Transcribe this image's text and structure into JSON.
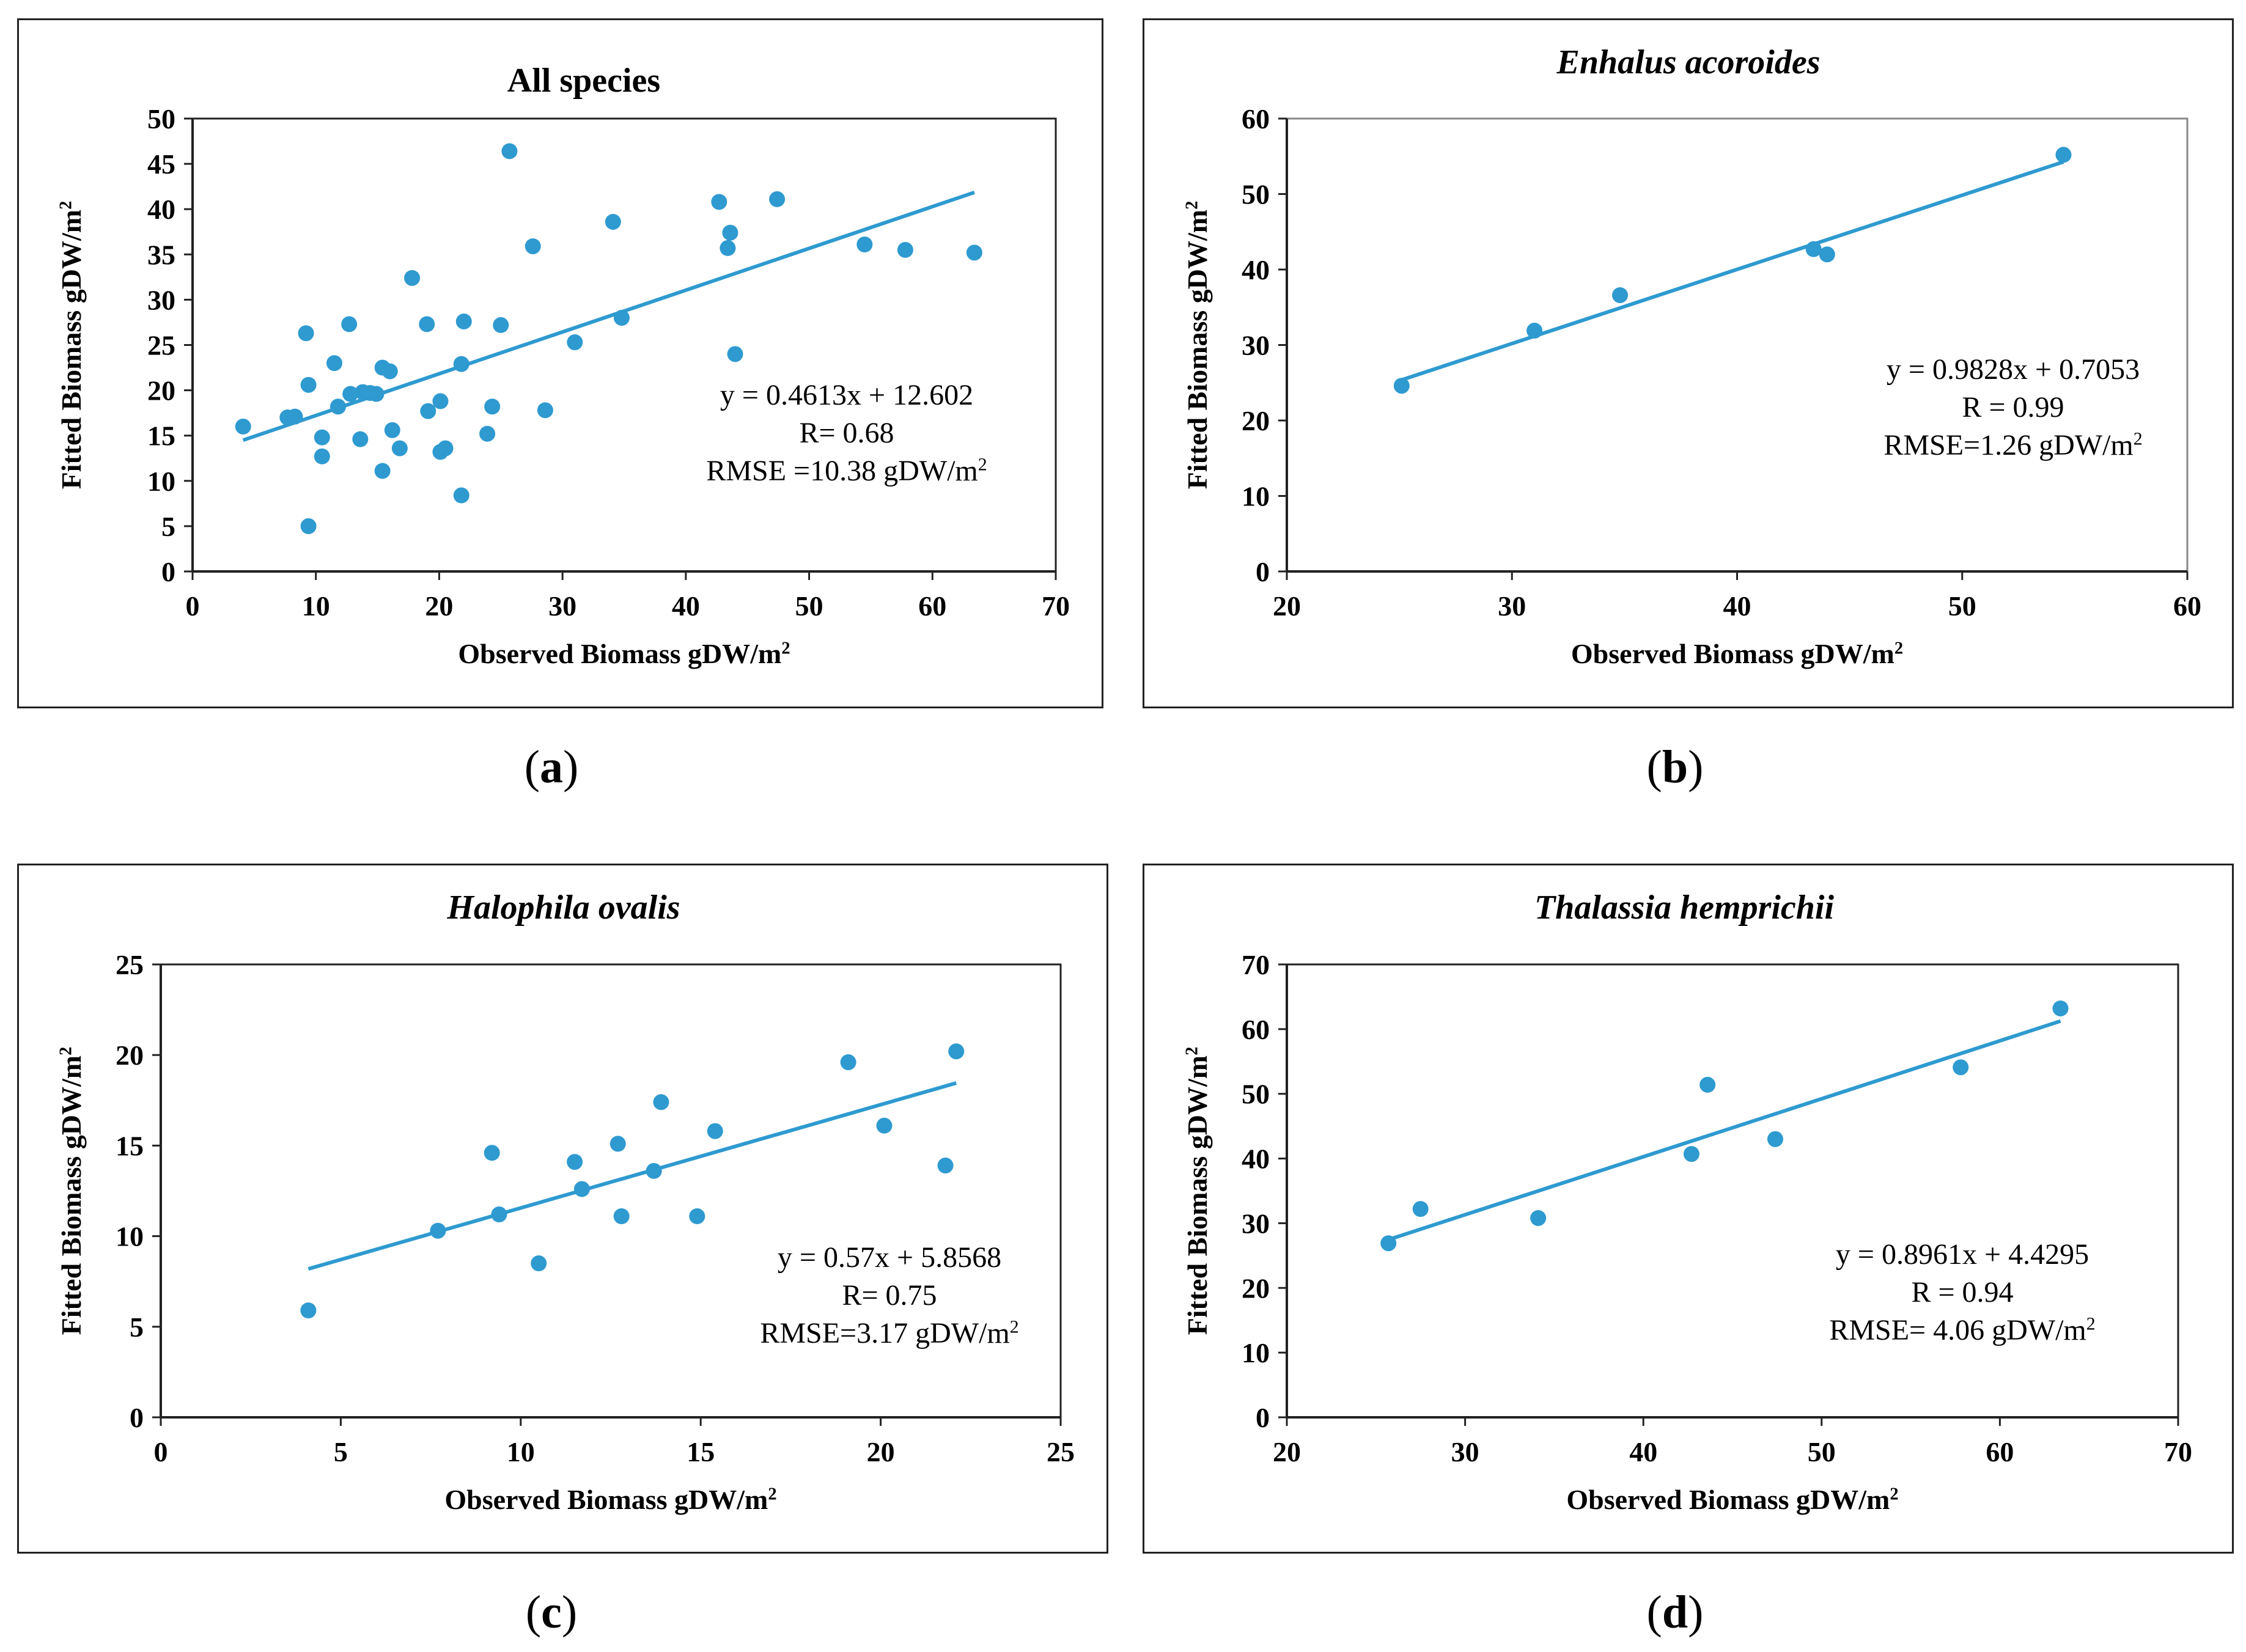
{
  "captions": {
    "a": "a",
    "b": "b",
    "c": "c",
    "d": "d"
  },
  "colors": {
    "marker": "#2e9ad0",
    "fit_line": "#2e9ad0",
    "frame": "#222222"
  },
  "chart_data": [
    {
      "id": "a",
      "type": "scatter",
      "title": "All species",
      "title_italic": false,
      "xlabel": "Observed Biomass gDW/m",
      "ylabel": "Fitted Biomass gDW/m",
      "unit_superscript": "2",
      "xlim": [
        0,
        70
      ],
      "ylim": [
        0,
        50
      ],
      "xticks": [
        0,
        10,
        20,
        30,
        40,
        50,
        60,
        70
      ],
      "yticks": [
        0,
        5,
        10,
        15,
        20,
        25,
        30,
        35,
        40,
        45,
        50
      ],
      "grid": false,
      "trendline": {
        "slope": 0.4613,
        "intercept": 12.602,
        "x_range": [
          4.1,
          63.4
        ]
      },
      "annotation": [
        "y = 0.4613x + 12.602",
        "R= 0.68",
        "RMSE =10.38 gDW/m"
      ],
      "points": [
        [
          4.1,
          16.0
        ],
        [
          7.7,
          17.0
        ],
        [
          8.3,
          17.1
        ],
        [
          9.2,
          26.3
        ],
        [
          9.4,
          20.6
        ],
        [
          9.4,
          5.0
        ],
        [
          10.5,
          14.8
        ],
        [
          10.5,
          12.7
        ],
        [
          11.5,
          23.0
        ],
        [
          11.8,
          18.2
        ],
        [
          12.7,
          27.3
        ],
        [
          12.8,
          19.6
        ],
        [
          13.6,
          14.6
        ],
        [
          13.8,
          19.8
        ],
        [
          14.4,
          19.7
        ],
        [
          14.9,
          19.6
        ],
        [
          15.4,
          11.1
        ],
        [
          15.4,
          22.5
        ],
        [
          16.0,
          22.1
        ],
        [
          16.2,
          15.6
        ],
        [
          16.8,
          13.6
        ],
        [
          17.8,
          32.4
        ],
        [
          19.0,
          27.3
        ],
        [
          19.1,
          17.7
        ],
        [
          20.1,
          18.8
        ],
        [
          20.1,
          13.2
        ],
        [
          20.5,
          13.6
        ],
        [
          21.8,
          8.4
        ],
        [
          21.8,
          22.9
        ],
        [
          22.0,
          27.6
        ],
        [
          23.9,
          15.2
        ],
        [
          24.3,
          18.2
        ],
        [
          25.0,
          27.2
        ],
        [
          25.7,
          46.4
        ],
        [
          27.6,
          35.9
        ],
        [
          28.6,
          17.8
        ],
        [
          31.0,
          25.3
        ],
        [
          34.1,
          38.6
        ],
        [
          34.8,
          28.0
        ],
        [
          42.7,
          40.8
        ],
        [
          43.4,
          35.7
        ],
        [
          43.6,
          37.4
        ],
        [
          44.0,
          24.0
        ],
        [
          47.4,
          41.1
        ],
        [
          54.5,
          36.1
        ],
        [
          57.8,
          35.5
        ],
        [
          63.4,
          35.2
        ]
      ]
    },
    {
      "id": "b",
      "type": "scatter",
      "title": "Enhalus acoroides",
      "title_italic": true,
      "xlabel": "Observed Biomass gDW/m",
      "ylabel": "Fitted Biomass gDW/m",
      "unit_superscript": "2",
      "xlim": [
        20,
        60
      ],
      "ylim": [
        0,
        60
      ],
      "xticks": [
        20,
        30,
        40,
        50,
        60
      ],
      "yticks": [
        0,
        10,
        20,
        30,
        40,
        50,
        60
      ],
      "grid": false,
      "trendline": {
        "slope": 0.9828,
        "intercept": 0.7053,
        "x_range": [
          25.1,
          54.5
        ]
      },
      "annotation": [
        "y = 0.9828x + 0.7053",
        "R = 0.99",
        "RMSE=1.26 gDW/m"
      ],
      "points": [
        [
          25.1,
          24.6
        ],
        [
          31.0,
          31.9
        ],
        [
          34.8,
          36.6
        ],
        [
          43.4,
          42.7
        ],
        [
          44.0,
          42.0
        ],
        [
          54.5,
          55.2
        ]
      ]
    },
    {
      "id": "c",
      "type": "scatter",
      "title": "Halophila ovalis",
      "title_italic": true,
      "xlabel": "Observed Biomass gDW/m",
      "ylabel": "Fitted Biomass gDW/m",
      "unit_superscript": "2",
      "xlim": [
        0,
        25
      ],
      "ylim": [
        0,
        25
      ],
      "xticks": [
        0,
        5,
        10,
        15,
        20,
        25
      ],
      "yticks": [
        0,
        5,
        10,
        15,
        20,
        25
      ],
      "grid": false,
      "trendline": {
        "slope": 0.57,
        "intercept": 5.8568,
        "x_range": [
          4.1,
          22.1
        ]
      },
      "annotation": [
        "y = 0.57x + 5.8568",
        "R= 0.75",
        "RMSE=3.17 gDW/m"
      ],
      "points": [
        [
          4.1,
          5.9
        ],
        [
          7.7,
          10.3
        ],
        [
          9.2,
          14.6
        ],
        [
          9.4,
          11.2
        ],
        [
          10.5,
          8.5
        ],
        [
          11.5,
          14.1
        ],
        [
          11.7,
          12.6
        ],
        [
          12.7,
          15.1
        ],
        [
          12.8,
          11.1
        ],
        [
          13.7,
          13.6
        ],
        [
          13.9,
          17.4
        ],
        [
          14.9,
          11.1
        ],
        [
          15.4,
          15.8
        ],
        [
          19.1,
          19.6
        ],
        [
          20.1,
          16.1
        ],
        [
          21.8,
          13.9
        ],
        [
          22.1,
          20.2
        ]
      ]
    },
    {
      "id": "d",
      "type": "scatter",
      "title": "Thalassia hemprichii",
      "title_italic": true,
      "xlabel": "Observed Biomass gDW/m",
      "ylabel": "Fitted Biomass gDW/m",
      "unit_superscript": "2",
      "xlim": [
        20,
        70
      ],
      "ylim": [
        0,
        70
      ],
      "xticks": [
        20,
        30,
        40,
        50,
        60,
        70
      ],
      "yticks": [
        0,
        10,
        20,
        30,
        40,
        50,
        60,
        70
      ],
      "grid": false,
      "trendline": {
        "slope": 0.8961,
        "intercept": 4.4295,
        "x_range": [
          25.7,
          63.4
        ]
      },
      "annotation": [
        "y = 0.8961x + 4.4295",
        "R = 0.94",
        "RMSE= 4.06 gDW/m"
      ],
      "points": [
        [
          25.7,
          26.9
        ],
        [
          27.5,
          32.2
        ],
        [
          34.1,
          30.8
        ],
        [
          42.7,
          40.7
        ],
        [
          43.6,
          51.4
        ],
        [
          47.4,
          43.0
        ],
        [
          57.8,
          54.1
        ],
        [
          63.4,
          63.2
        ]
      ]
    }
  ]
}
